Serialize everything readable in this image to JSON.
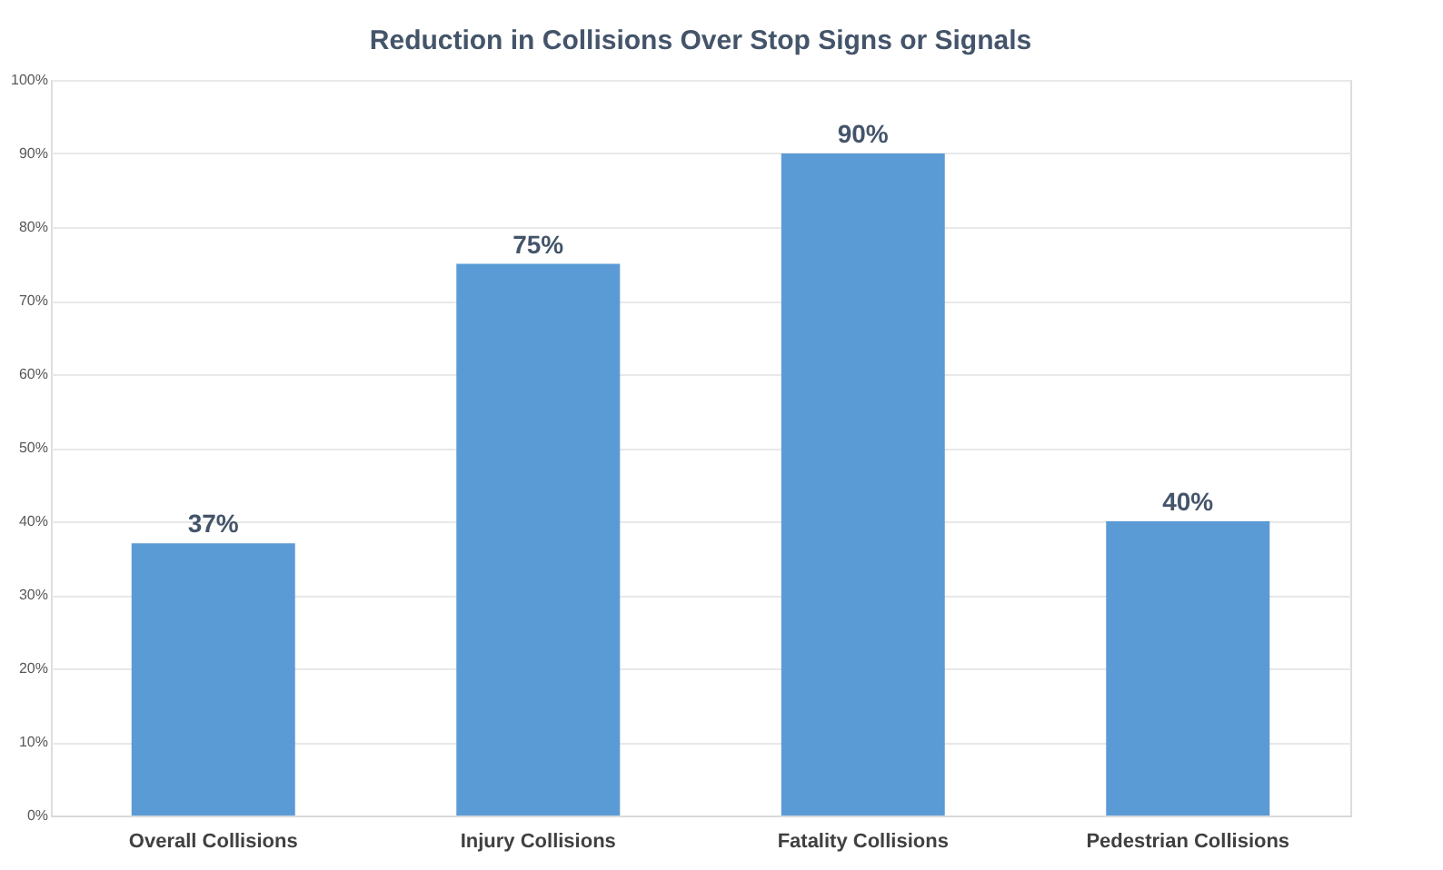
{
  "chart_data": {
    "type": "bar",
    "title": "Reduction in Collisions Over Stop Signs or Signals",
    "categories": [
      "Overall Collisions",
      "Injury Collisions",
      "Fatality Collisions",
      "Pedestrian Collisions"
    ],
    "values": [
      37,
      75,
      90,
      40
    ],
    "value_labels": [
      "37%",
      "75%",
      "90%",
      "40%"
    ],
    "color": "#5b9bd5",
    "ylim": [
      0,
      100
    ],
    "yticks": [
      {
        "value": 0,
        "label": "0%"
      },
      {
        "value": 10,
        "label": "10%"
      },
      {
        "value": 20,
        "label": "20%"
      },
      {
        "value": 30,
        "label": "30%"
      },
      {
        "value": 40,
        "label": "40%"
      },
      {
        "value": 50,
        "label": "50%"
      },
      {
        "value": 60,
        "label": "60%"
      },
      {
        "value": 70,
        "label": "70%"
      },
      {
        "value": 80,
        "label": "80%"
      },
      {
        "value": 90,
        "label": "90%"
      },
      {
        "value": 100,
        "label": "100%"
      }
    ],
    "grid": "y"
  }
}
